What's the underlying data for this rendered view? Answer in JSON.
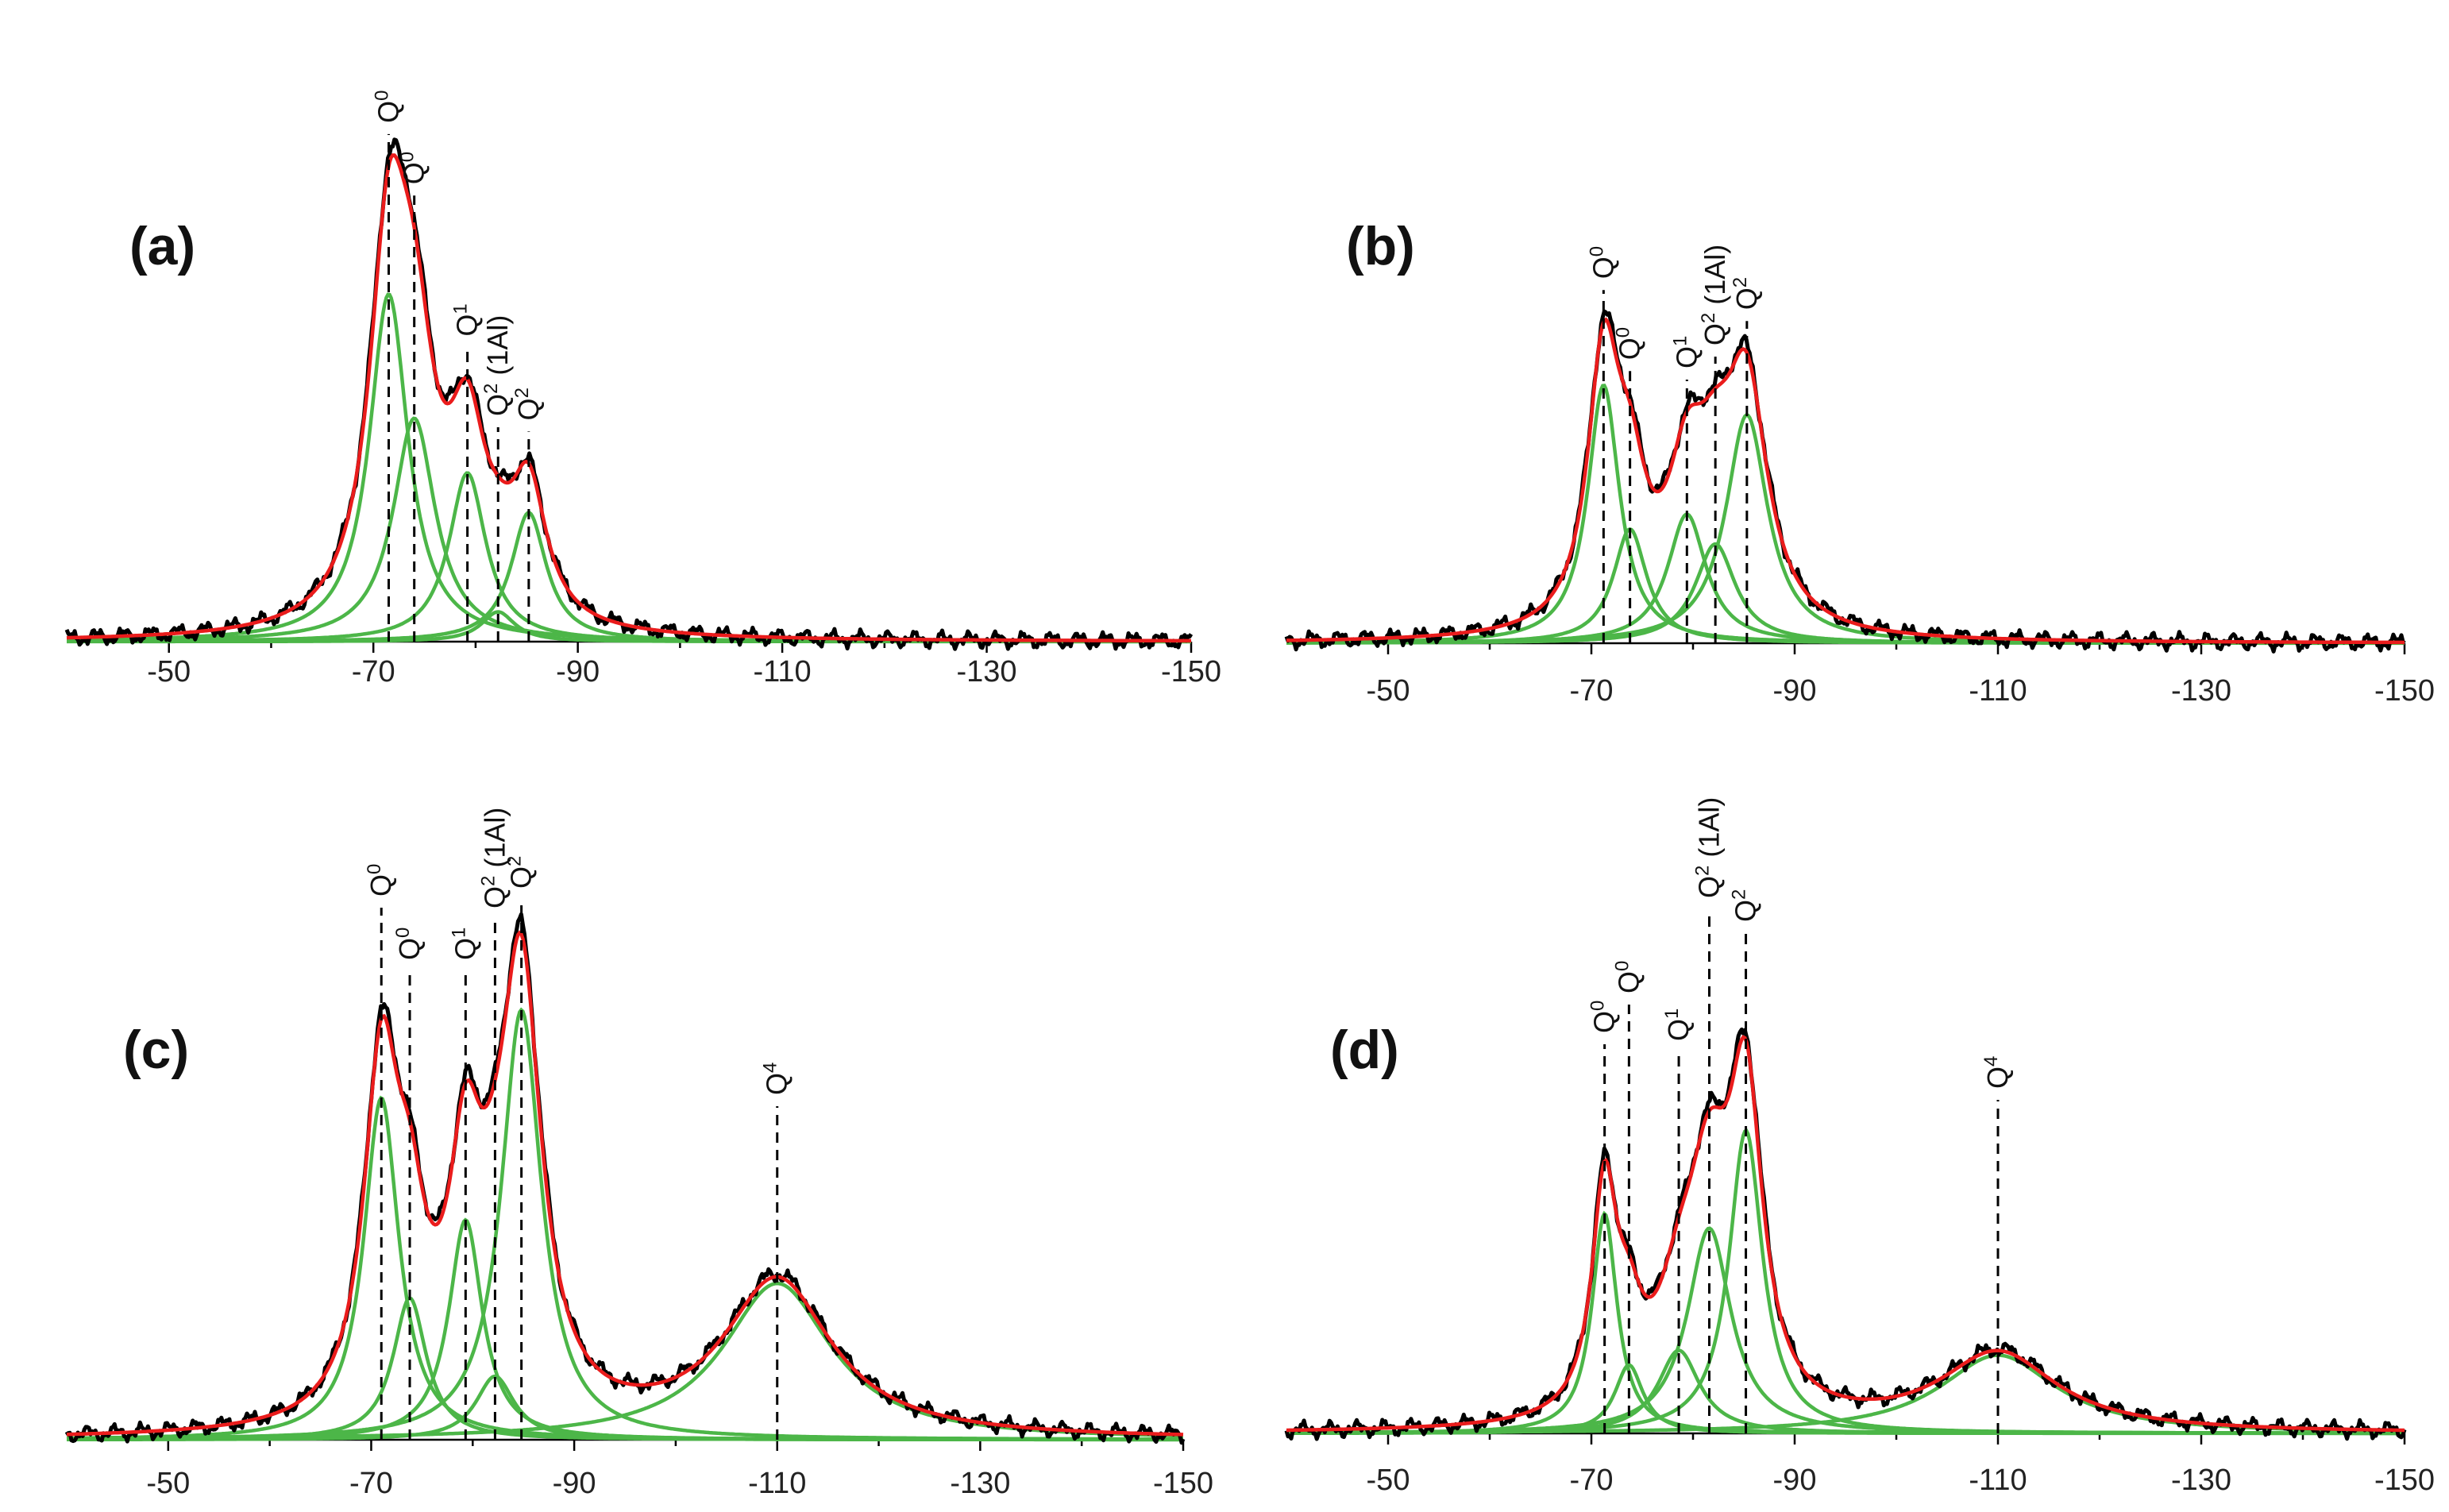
{
  "chart_data": [
    {
      "panel": "(a)",
      "type": "line",
      "title": "",
      "xlabel": "",
      "ylabel": "",
      "x_axis": {
        "range": [
          -40,
          -150
        ],
        "ticks": [
          "-50",
          "-70",
          "-90",
          "-110",
          "-130",
          "-150"
        ],
        "tick_values": [
          -50,
          -70,
          -90,
          -110,
          -130,
          -150
        ]
      },
      "y_range": [
        0,
        1.0
      ],
      "peaks": [
        {
          "label": "Q",
          "sup": "0",
          "suffix": "",
          "position": -71.5,
          "height": 0.7,
          "width": 2.3
        },
        {
          "label": "Q",
          "sup": "0",
          "suffix": "",
          "position": -74.0,
          "height": 0.45,
          "width": 2.5
        },
        {
          "label": "Q",
          "sup": "1",
          "suffix": "",
          "position": -79.2,
          "height": 0.34,
          "width": 2.2
        },
        {
          "label": "Q",
          "sup": "2",
          "suffix": " (1Al)",
          "position": -82.2,
          "height": 0.06,
          "width": 2.0
        },
        {
          "label": "Q",
          "sup": "2",
          "suffix": "",
          "position": -85.2,
          "height": 0.26,
          "width": 2.1
        }
      ],
      "series": [
        {
          "name": "experimental spectrum",
          "color": "#000000"
        },
        {
          "name": "fitted envelope",
          "color": "#ea1c1c"
        },
        {
          "name": "deconvoluted components",
          "color": "#4cb648"
        }
      ]
    },
    {
      "panel": "(b)",
      "type": "line",
      "title": "",
      "xlabel": "",
      "ylabel": "",
      "x_axis": {
        "range": [
          -40,
          -150
        ],
        "ticks": [
          "-50",
          "-70",
          "-90",
          "-110",
          "-130",
          "-150"
        ],
        "tick_values": [
          -50,
          -70,
          -90,
          -110,
          -130,
          -150
        ]
      },
      "y_range": [
        0,
        1.0
      ],
      "peaks": [
        {
          "label": "Q",
          "sup": "0",
          "suffix": "",
          "position": -71.2,
          "height": 0.52,
          "width": 1.9
        },
        {
          "label": "Q",
          "sup": "0",
          "suffix": "",
          "position": -73.8,
          "height": 0.23,
          "width": 2.0
        },
        {
          "label": "Q",
          "sup": "1",
          "suffix": "",
          "position": -79.4,
          "height": 0.26,
          "width": 2.3
        },
        {
          "label": "Q",
          "sup": "2",
          "suffix": " (1Al)",
          "position": -82.2,
          "height": 0.2,
          "width": 2.4
        },
        {
          "label": "Q",
          "sup": "2",
          "suffix": "",
          "position": -85.3,
          "height": 0.46,
          "width": 2.5
        }
      ],
      "series": [
        {
          "name": "experimental spectrum",
          "color": "#000000"
        },
        {
          "name": "fitted envelope",
          "color": "#ea1c1c"
        },
        {
          "name": "deconvoluted components",
          "color": "#4cb648"
        }
      ]
    },
    {
      "panel": "(c)",
      "type": "line",
      "title": "",
      "xlabel": "",
      "ylabel": "",
      "x_axis": {
        "range": [
          -40,
          -150
        ],
        "ticks": [
          "-50",
          "-70",
          "-90",
          "-110",
          "-130",
          "-150"
        ],
        "tick_values": [
          -50,
          -70,
          -90,
          -110,
          -130,
          -150
        ]
      },
      "y_range": [
        0,
        1.0
      ],
      "peaks": [
        {
          "label": "Q",
          "sup": "0",
          "suffix": "",
          "position": -71.0,
          "height": 0.7,
          "width": 2.1
        },
        {
          "label": "Q",
          "sup": "0",
          "suffix": "",
          "position": -73.8,
          "height": 0.29,
          "width": 2.0
        },
        {
          "label": "Q",
          "sup": "1",
          "suffix": "",
          "position": -79.3,
          "height": 0.45,
          "width": 2.0
        },
        {
          "label": "Q",
          "sup": "2",
          "suffix": " (1Al)",
          "position": -82.2,
          "height": 0.13,
          "width": 2.3
        },
        {
          "label": "Q",
          "sup": "2",
          "suffix": "",
          "position": -84.8,
          "height": 0.88,
          "width": 2.4
        },
        {
          "label": "Q",
          "sup": "4",
          "suffix": "",
          "position": -110.0,
          "height": 0.32,
          "width": 6.5
        }
      ],
      "series": [
        {
          "name": "experimental spectrum",
          "color": "#000000"
        },
        {
          "name": "fitted envelope",
          "color": "#ea1c1c"
        },
        {
          "name": "deconvoluted components",
          "color": "#4cb648"
        }
      ]
    },
    {
      "panel": "(d)",
      "type": "line",
      "title": "",
      "xlabel": "",
      "ylabel": "",
      "x_axis": {
        "range": [
          -40,
          -150
        ],
        "ticks": [
          "-50",
          "-70",
          "-90",
          "-110",
          "-130",
          "-150"
        ],
        "tick_values": [
          -50,
          -70,
          -90,
          -110,
          -130,
          -150
        ]
      },
      "y_range": [
        0,
        1.0
      ],
      "peaks": [
        {
          "label": "Q",
          "sup": "0",
          "suffix": "",
          "position": -71.3,
          "height": 0.45,
          "width": 1.5
        },
        {
          "label": "Q",
          "sup": "0",
          "suffix": "",
          "position": -73.7,
          "height": 0.14,
          "width": 1.7
        },
        {
          "label": "Q",
          "sup": "1",
          "suffix": "",
          "position": -78.6,
          "height": 0.17,
          "width": 2.5
        },
        {
          "label": "Q",
          "sup": "2",
          "suffix": " (1Al)",
          "position": -81.6,
          "height": 0.42,
          "width": 2.6
        },
        {
          "label": "Q",
          "sup": "2",
          "suffix": "",
          "position": -85.2,
          "height": 0.62,
          "width": 2.0
        },
        {
          "label": "Q",
          "sup": "4",
          "suffix": "",
          "position": -110.0,
          "height": 0.16,
          "width": 7.0
        }
      ],
      "series": [
        {
          "name": "experimental spectrum",
          "color": "#000000"
        },
        {
          "name": "fitted envelope",
          "color": "#ea1c1c"
        },
        {
          "name": "deconvoluted components",
          "color": "#4cb648"
        }
      ]
    }
  ]
}
